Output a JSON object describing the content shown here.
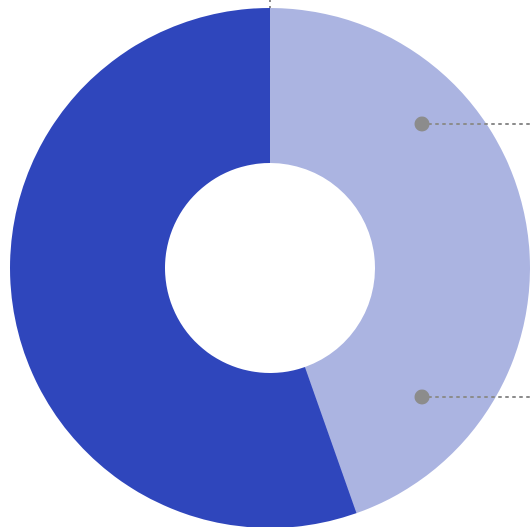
{
  "chart_data": {
    "type": "pie",
    "donut": true,
    "categories": [
      "",
      ""
    ],
    "values": [
      44.6,
      55.4
    ],
    "colors": [
      "#abb4e1",
      "#2f46bc"
    ],
    "start_angle_deg": 0,
    "direction": "clockwise",
    "title": "",
    "legend": "none",
    "callout_color": "#8c8c8c"
  }
}
